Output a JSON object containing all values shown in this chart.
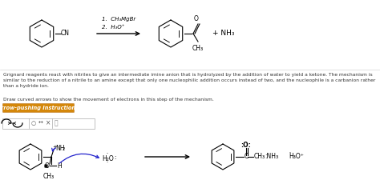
{
  "bg_color": "#ffffff",
  "paragraph1": "Grignard reagents react with nitriles to give an intermediate imine anion that is hydrolyzed by the addition of water to yield a ketone. The mechanism is similar to the reduction of a nitrile to an amine except that only one nucleophilic addition occurs instead of two, and the nucleophile is a carbanion rather than a hydride ion.",
  "paragraph2": "Draw curved arrows to show the movement of electrons in this step of the mechanism.",
  "button_text": "Arrow-pushing Instructions",
  "button_bg": "#d4870a",
  "button_text_color": "#ffffff",
  "reaction_step1": "1.  CH₃MgBr",
  "reaction_step2": "2.  H₃O⁺",
  "plus_nh3": "+ NH₃",
  "ch3_label": "CH₃"
}
